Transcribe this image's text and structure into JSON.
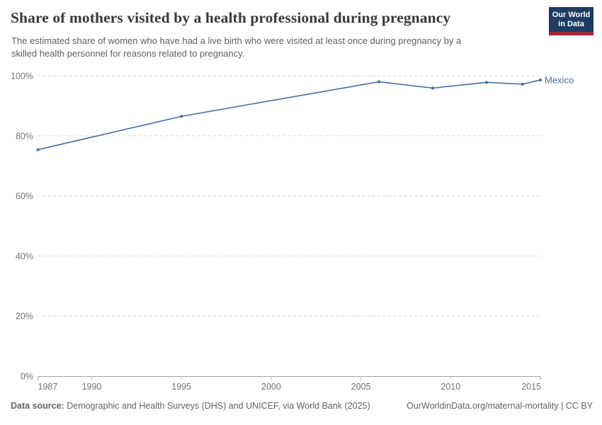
{
  "header": {
    "title": "Share of mothers visited by a health professional during pregnancy",
    "subtitle": "The estimated share of women who have had a live birth who were visited at least once during pregnancy by a\nskilled health personnel for reasons related to pregnancy.",
    "logo": {
      "line1": "Our World",
      "line2": "in Data",
      "bg_color": "#1d3d63",
      "accent_color": "#a52639"
    }
  },
  "chart_data": {
    "type": "line",
    "title": "Share of mothers visited by a health professional during pregnancy",
    "xlabel": "",
    "ylabel": "",
    "x_range": [
      1987,
      2015
    ],
    "y_range": [
      0,
      100
    ],
    "x_ticks": [
      1987,
      1990,
      1995,
      2000,
      2005,
      2010,
      2015
    ],
    "y_ticks": [
      0,
      20,
      40,
      60,
      80,
      100
    ],
    "y_tick_suffix": "%",
    "grid": true,
    "legend_position": "end-of-line",
    "colors": {
      "grid": "#dadada",
      "axis": "#a3a3a3",
      "minor_tick": "#c6c6c6",
      "tick_label": "#737373"
    },
    "series": [
      {
        "name": "Mexico",
        "color": "#4C6A9C",
        "points": [
          {
            "year": 1987,
            "value": 75.4
          },
          {
            "year": 1995,
            "value": 86.5
          },
          {
            "year": 2006,
            "value": 98.0
          },
          {
            "year": 2009,
            "value": 95.9
          },
          {
            "year": 2012,
            "value": 97.8
          },
          {
            "year": 2014,
            "value": 97.2
          },
          {
            "year": 2015,
            "value": 98.6
          }
        ]
      }
    ]
  },
  "footer": {
    "datasource_label": "Data source:",
    "datasource_text": "Demographic and Health Surveys (DHS) and UNICEF, via World Bank (2025)",
    "credit": "OurWorldinData.org/maternal-mortality | CC BY"
  }
}
